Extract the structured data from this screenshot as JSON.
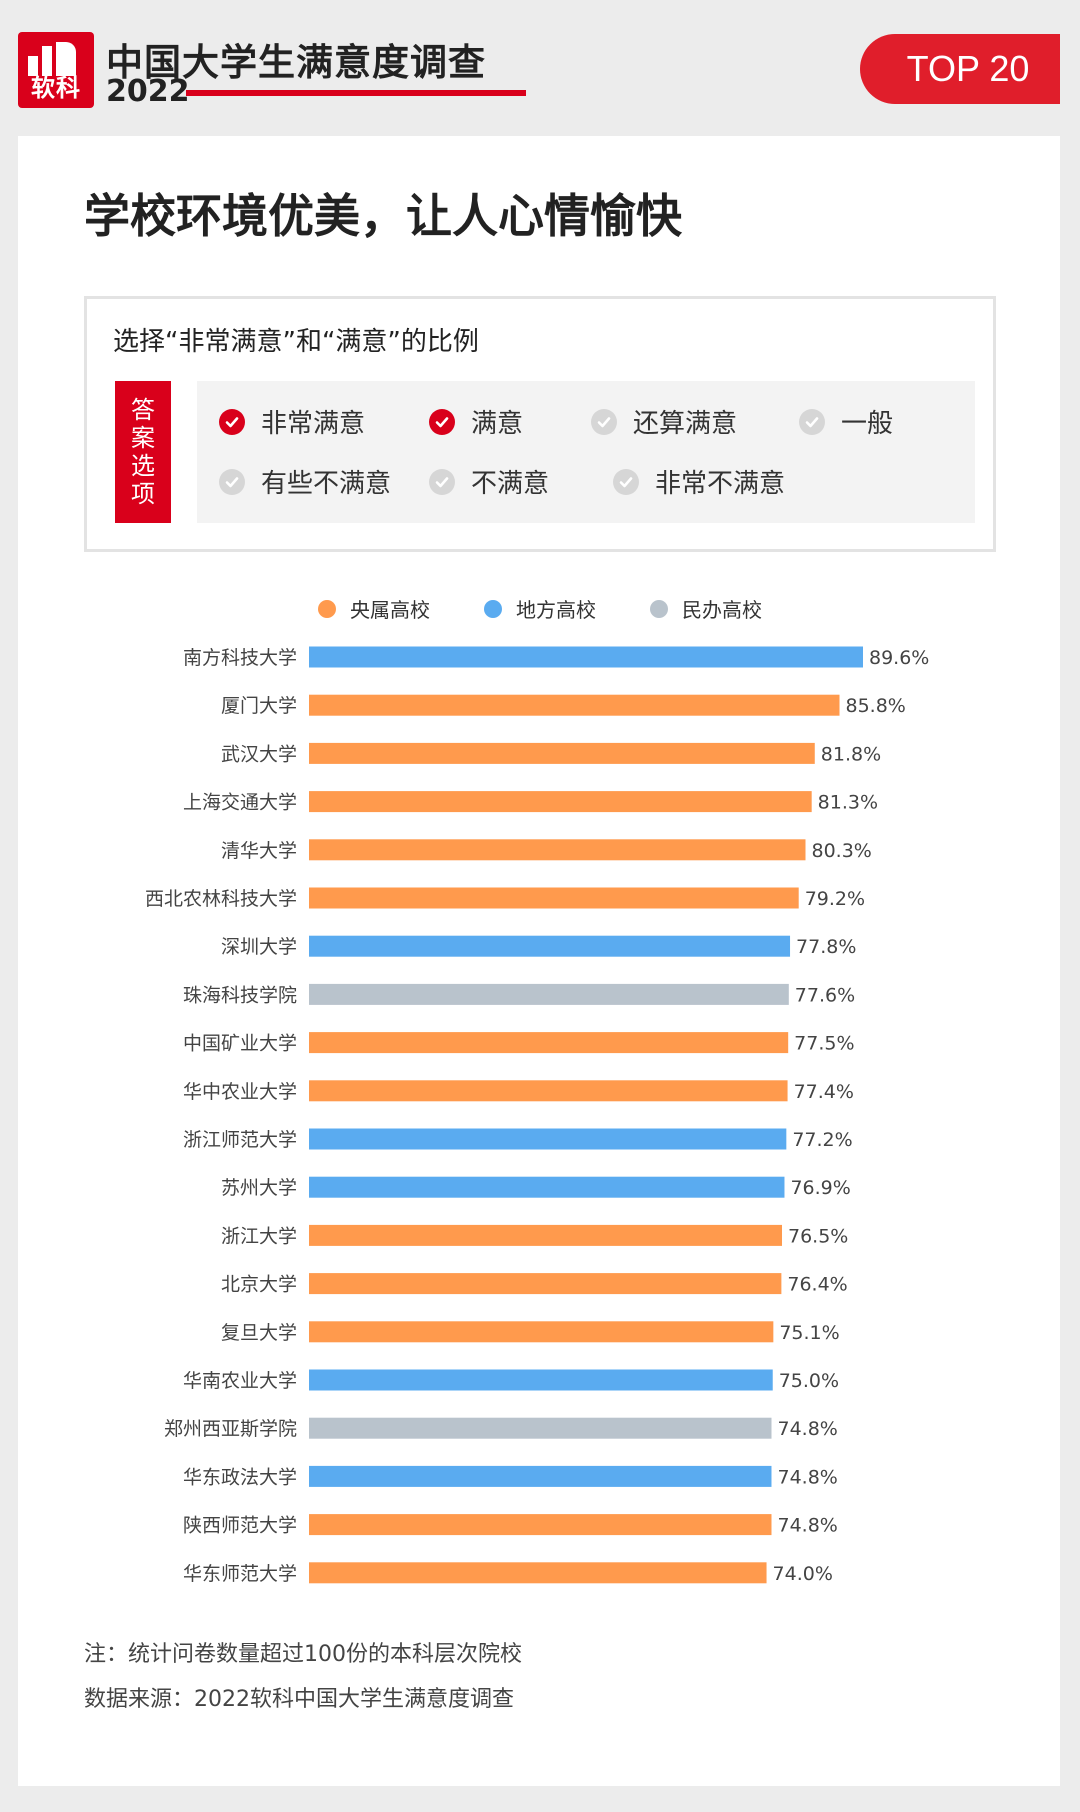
{
  "header": {
    "logo_text": "软科",
    "brand_title": "中国大学生满意度调查",
    "brand_year": "2022",
    "badge": "TOP 20",
    "accent_color": "#d9001b"
  },
  "headline": "学校环境优美，让人心情愉快",
  "question": {
    "title": "选择“非常满意”和“满意”的比例",
    "options_tag": "答案选项",
    "options": [
      {
        "label": "非常满意",
        "selected": true
      },
      {
        "label": "满意",
        "selected": true
      },
      {
        "label": "还算满意",
        "selected": false
      },
      {
        "label": "一般",
        "selected": false
      },
      {
        "label": "有些不满意",
        "selected": false
      },
      {
        "label": "不满意",
        "selected": false
      },
      {
        "label": "非常不满意",
        "selected": false
      }
    ]
  },
  "legend": [
    {
      "label": "央属高校",
      "color": "#ff9a4d"
    },
    {
      "label": "地方高校",
      "color": "#5aabf0"
    },
    {
      "label": "民办高校",
      "color": "#b9c3cc"
    }
  ],
  "chart_data": {
    "type": "bar",
    "orientation": "horizontal",
    "categories": [
      "南方科技大学",
      "厦门大学",
      "武汉大学",
      "上海交通大学",
      "清华大学",
      "西北农林科技大学",
      "深圳大学",
      "珠海科技学院",
      "中国矿业大学",
      "华中农业大学",
      "浙江师范大学",
      "苏州大学",
      "浙江大学",
      "北京大学",
      "复旦大学",
      "华南农业大学",
      "郑州西亚斯学院",
      "华东政法大学",
      "陕西师范大学",
      "华东师范大学"
    ],
    "values": [
      89.6,
      85.8,
      81.8,
      81.3,
      80.3,
      79.2,
      77.8,
      77.6,
      77.5,
      77.4,
      77.2,
      76.9,
      76.5,
      76.4,
      75.1,
      75.0,
      74.8,
      74.8,
      74.8,
      74.0
    ],
    "value_labels": [
      "89.6%",
      "85.8%",
      "81.8%",
      "81.3%",
      "80.3%",
      "79.2%",
      "77.8%",
      "77.6%",
      "77.5%",
      "77.4%",
      "77.2%",
      "76.9%",
      "76.5%",
      "76.4%",
      "75.1%",
      "75.0%",
      "74.8%",
      "74.8%",
      "74.8%",
      "74.0%"
    ],
    "groups": [
      "地方高校",
      "央属高校",
      "央属高校",
      "央属高校",
      "央属高校",
      "央属高校",
      "地方高校",
      "民办高校",
      "央属高校",
      "央属高校",
      "地方高校",
      "地方高校",
      "央属高校",
      "央属高校",
      "央属高校",
      "地方高校",
      "民办高校",
      "地方高校",
      "央属高校",
      "央属高校"
    ],
    "unit": "%",
    "legend_position": "top",
    "grid": false
  },
  "footer": {
    "note": "注：统计问卷数量超过100份的本科层次院校",
    "source": "数据来源：2022软科中国大学生满意度调查"
  }
}
